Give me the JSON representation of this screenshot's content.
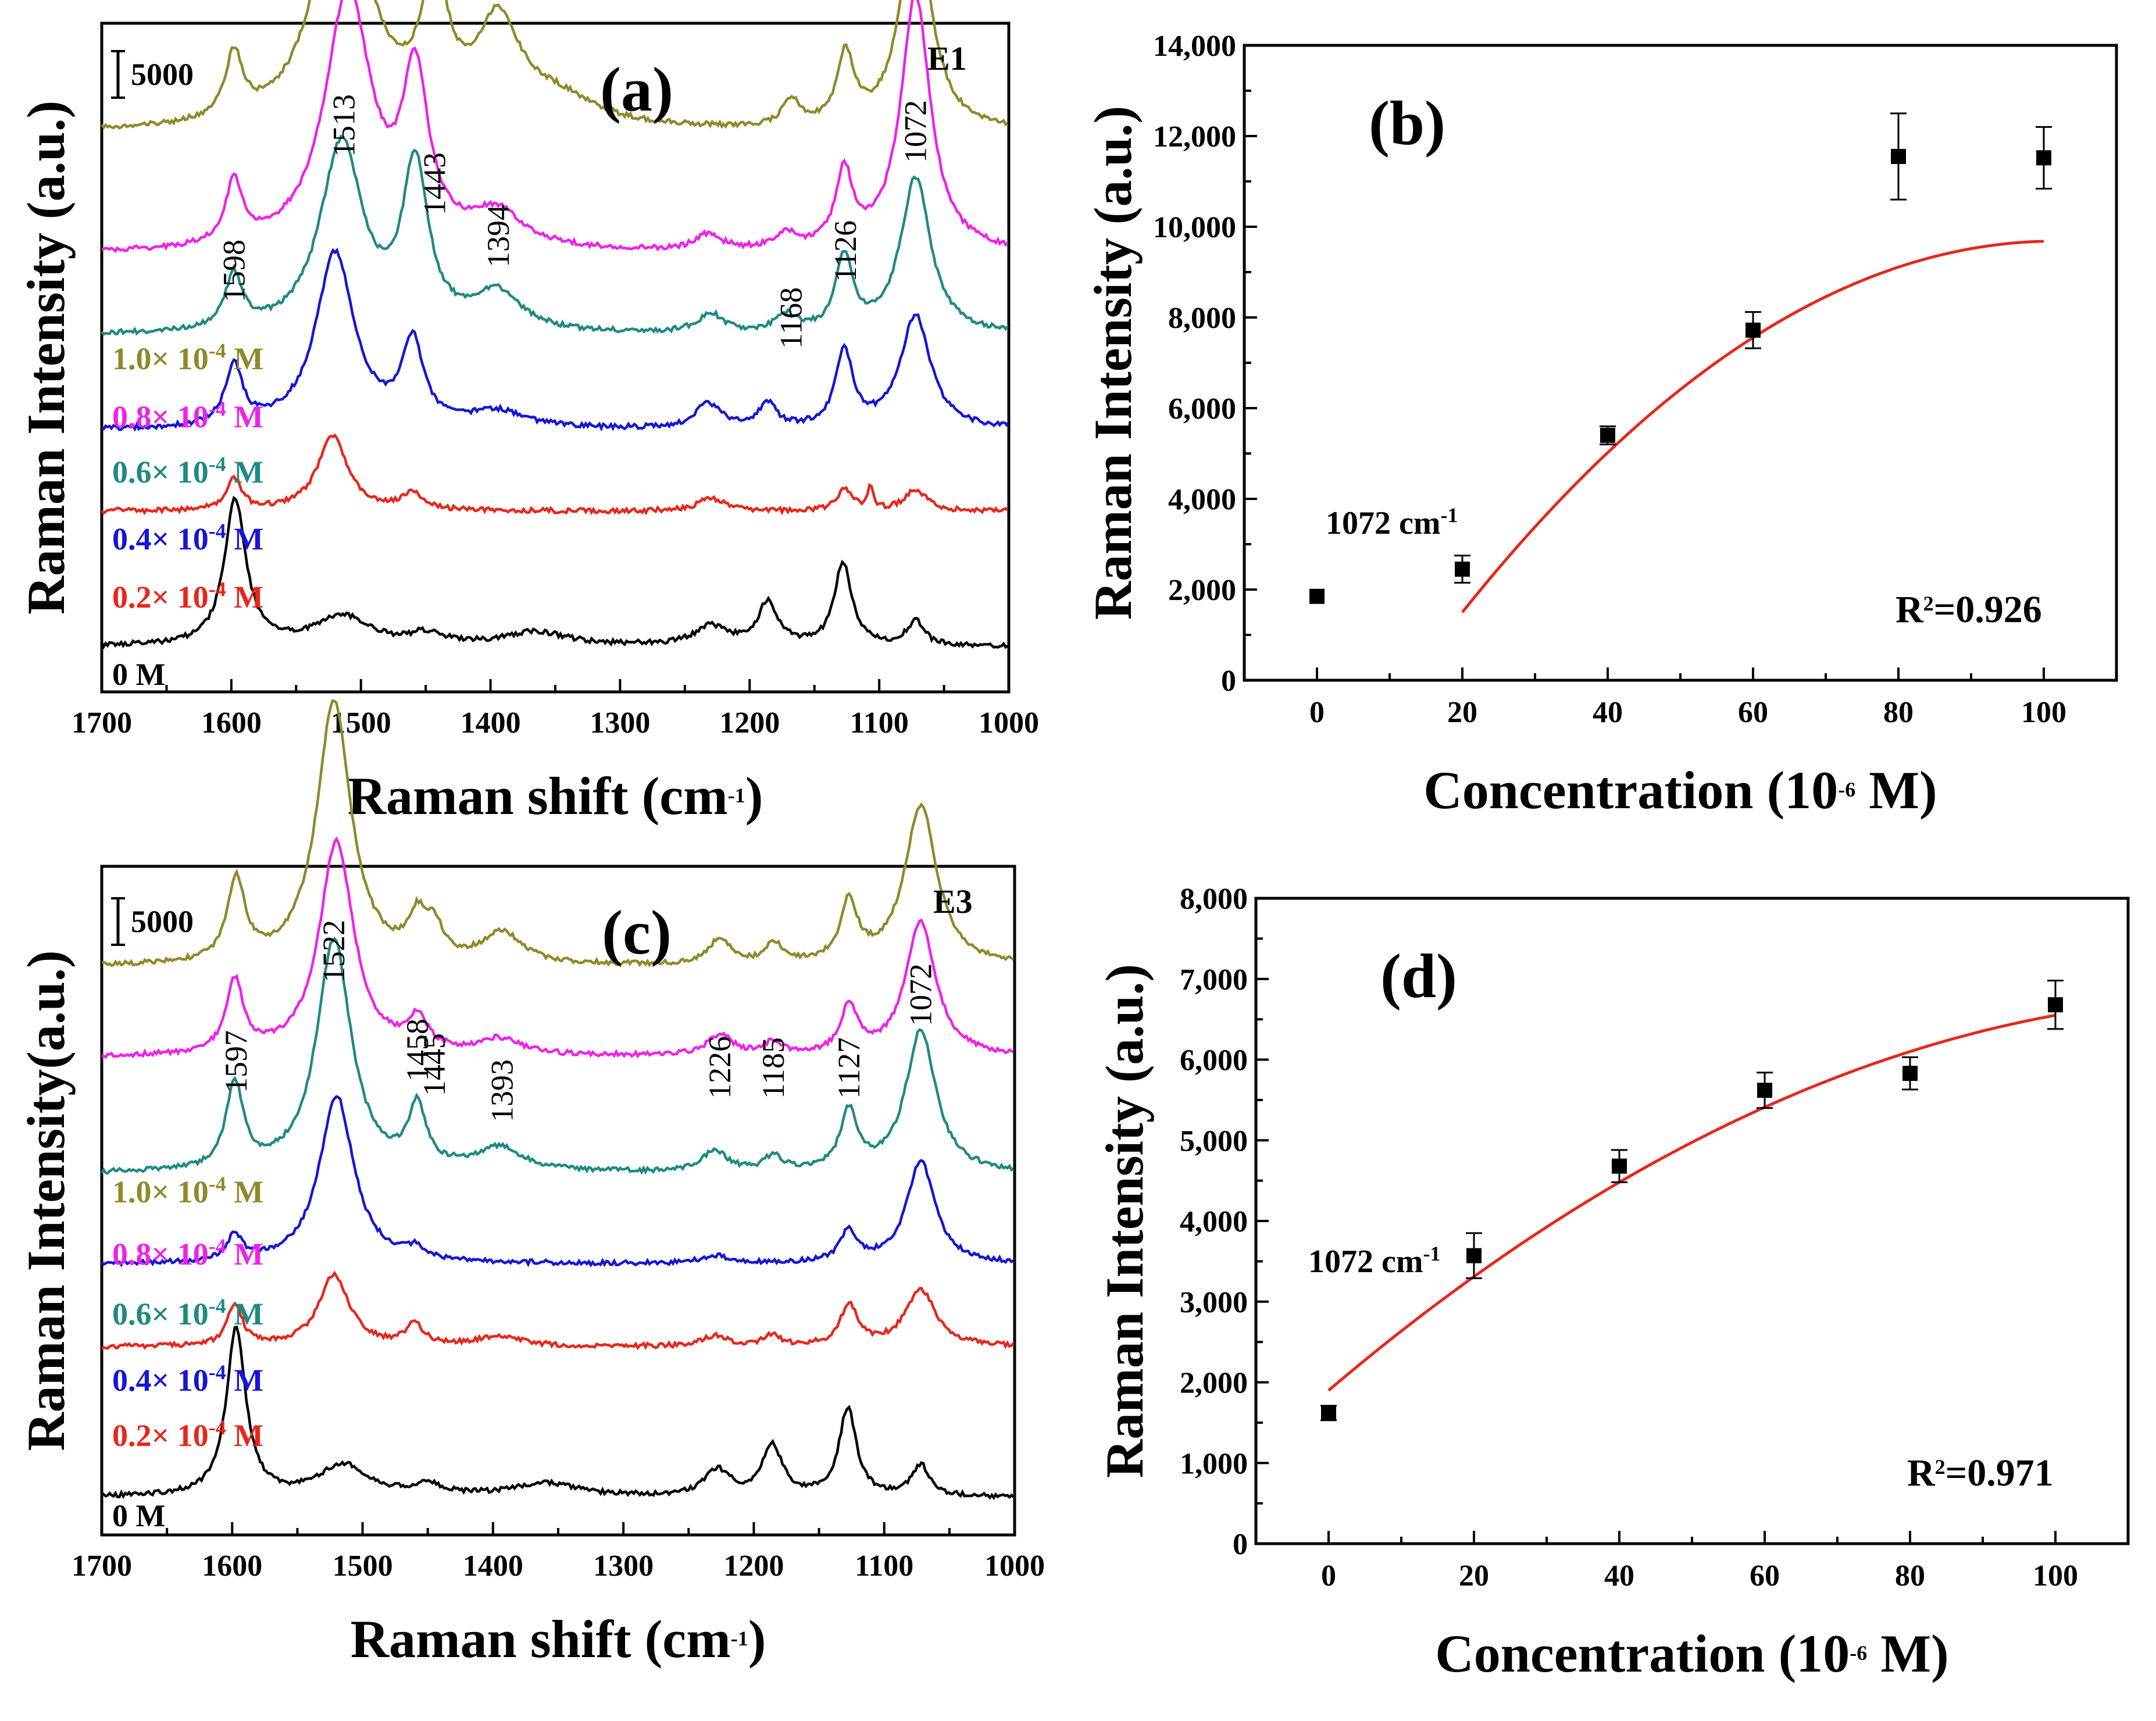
{
  "chart_data": [
    {
      "panel": "(a)",
      "type": "line",
      "sample": "E1",
      "xlabel": "Raman shift (cm-1)",
      "ylabel": "Raman Intensity (a.u.)",
      "xlim": [
        1700,
        1000
      ],
      "xticks": [
        1700,
        1600,
        1500,
        1400,
        1300,
        1200,
        1100,
        1000
      ],
      "scale_bar": "5000",
      "peak_labels": [
        {
          "x": 1598,
          "text": "1598"
        },
        {
          "x": 1513,
          "text": "1513"
        },
        {
          "x": 1443,
          "text": "1443"
        },
        {
          "x": 1394,
          "text": "1394"
        },
        {
          "x": 1168,
          "text": "1168"
        },
        {
          "x": 1126,
          "text": "1126"
        },
        {
          "x": 1072,
          "text": "1072"
        }
      ],
      "series": [
        {
          "name": "0 M",
          "label_main": "0 M",
          "label_exp": "",
          "label_tail": "",
          "color": "#000000",
          "offset": 0,
          "peaks": [
            [
              1597,
              5.4,
              10
            ],
            [
              1515,
              1.1,
              25
            ],
            [
              1450,
              0.4,
              15
            ],
            [
              1365,
              0.5,
              30
            ],
            [
              1230,
              0.7,
              15
            ],
            [
              1186,
              1.6,
              9
            ],
            [
              1128,
              3.1,
              8
            ],
            [
              1072,
              0.9,
              8
            ]
          ]
        },
        {
          "name": "0.2× 10^-4 M",
          "label_main": "0.2× 10",
          "label_exp": "-4",
          "label_tail": " M",
          "color": "#e8261b",
          "offset": 5.0,
          "peaks": [
            [
              1598,
              1.2,
              7
            ],
            [
              1522,
              2.8,
              14
            ],
            [
              1460,
              0.6,
              10
            ],
            [
              1230,
              0.5,
              12
            ],
            [
              1127,
              0.8,
              7
            ],
            [
              1107,
              0.8,
              3
            ],
            [
              1072,
              0.8,
              10
            ]
          ]
        },
        {
          "name": "0.4× 10^-4 M",
          "label_main": "0.4× 10",
          "label_exp": "-4",
          "label_tail": " M",
          "color": "#1515d8",
          "offset": 8.0,
          "peaks": [
            [
              1598,
              2.2,
              8
            ],
            [
              1520,
              6.5,
              18
            ],
            [
              1460,
              3.0,
              10
            ],
            [
              1395,
              0.6,
              25
            ],
            [
              1232,
              0.9,
              12
            ],
            [
              1186,
              0.9,
              8
            ],
            [
              1127,
              2.8,
              8
            ],
            [
              1072,
              4.2,
              14
            ]
          ]
        },
        {
          "name": "0.6× 10^-4 M",
          "label_main": "0.6× 10",
          "label_exp": "-4",
          "label_tail": " M",
          "color": "#1f8a82",
          "offset": 11.5,
          "peaks": [
            [
              1598,
              2.0,
              8
            ],
            [
              1515,
              7.0,
              20
            ],
            [
              1458,
              6.0,
              12
            ],
            [
              1395,
              1.4,
              22
            ],
            [
              1230,
              0.7,
              12
            ],
            [
              1172,
              0.6,
              10
            ],
            [
              1127,
              2.7,
              8
            ],
            [
              1072,
              5.8,
              14
            ]
          ]
        },
        {
          "name": "0.8× 10^-4 M",
          "label_main": "0.8× 10",
          "label_exp": "-4",
          "label_tail": " M",
          "color": "#ee22e8",
          "offset": 14.5,
          "peaks": [
            [
              1598,
              2.3,
              8
            ],
            [
              1510,
              9.5,
              22
            ],
            [
              1458,
              6.0,
              12
            ],
            [
              1395,
              1.3,
              25
            ],
            [
              1232,
              0.6,
              12
            ],
            [
              1172,
              0.6,
              10
            ],
            [
              1127,
              2.8,
              8
            ],
            [
              1072,
              9.5,
              14
            ]
          ]
        },
        {
          "name": "1.0× 10^-4 M",
          "label_main": "1.0× 10",
          "label_exp": "-4",
          "label_tail": " M",
          "color": "#8e8a2a",
          "offset": 19.0,
          "peaks": [
            [
              1598,
              2.4,
              8
            ],
            [
              1515,
              9.5,
              24
            ],
            [
              1443,
              5.0,
              12
            ],
            [
              1394,
              3.6,
              20
            ],
            [
              1350,
              1.0,
              40
            ],
            [
              1168,
              1.0,
              8
            ],
            [
              1126,
              2.6,
              8
            ],
            [
              1072,
              8.0,
              14
            ]
          ]
        }
      ]
    },
    {
      "panel": "(b)",
      "type": "scatter",
      "xlabel": "Concentration (10-6 M)",
      "ylabel": "Raman Intensity (a.u.)",
      "xlim": [
        -10,
        110
      ],
      "ylim": [
        0,
        14000
      ],
      "xticks": [
        0,
        20,
        40,
        60,
        80,
        100
      ],
      "yticks": [
        "0",
        "2,000",
        "4,000",
        "6,000",
        "8,000",
        "10,000",
        "12,000",
        "14,000"
      ],
      "annotation": "1072 cm-1",
      "r_squared": "R2=0.926",
      "points": [
        {
          "x": 0,
          "y": 1850,
          "err": 0
        },
        {
          "x": 20,
          "y": 2450,
          "err": 300
        },
        {
          "x": 40,
          "y": 5400,
          "err": 200
        },
        {
          "x": 60,
          "y": 7720,
          "err": 400
        },
        {
          "x": 80,
          "y": 11550,
          "err": 950
        },
        {
          "x": 100,
          "y": 11520,
          "err": 680
        }
      ],
      "fit": {
        "color": "#e8261b",
        "x_range": [
          20,
          100
        ],
        "a": -1.23,
        "b": 249.85,
        "c": -3006
      }
    },
    {
      "panel": "(c)",
      "type": "line",
      "sample": "E3",
      "xlabel": "Raman shift (cm-1)",
      "ylabel": "Raman Intensity(a.u.)",
      "xlim": [
        1700,
        1000
      ],
      "xticks": [
        1700,
        1600,
        1500,
        1400,
        1300,
        1200,
        1100,
        1000
      ],
      "scale_bar": "5000",
      "peak_labels": [
        {
          "x": 1597,
          "text": "1597"
        },
        {
          "x": 1522,
          "text": "1522"
        },
        {
          "x": 1458,
          "text": "1458"
        },
        {
          "x": 1445,
          "text": "1445"
        },
        {
          "x": 1393,
          "text": "1393"
        },
        {
          "x": 1226,
          "text": "1226"
        },
        {
          "x": 1185,
          "text": "1185"
        },
        {
          "x": 1127,
          "text": "1127"
        },
        {
          "x": 1072,
          "text": "1072"
        }
      ],
      "series": [
        {
          "name": "0 M",
          "label_main": "0 M",
          "label_exp": "",
          "label_tail": "",
          "color": "#000000",
          "offset": 0,
          "peaks": [
            [
              1597,
              6.5,
              9
            ],
            [
              1515,
              1.2,
              22
            ],
            [
              1450,
              0.4,
              15
            ],
            [
              1360,
              0.5,
              30
            ],
            [
              1228,
              1.0,
              12
            ],
            [
              1186,
              2.0,
              9
            ],
            [
              1128,
              3.4,
              8
            ],
            [
              1072,
              1.2,
              8
            ]
          ]
        },
        {
          "name": "0.2× 10^-4 M",
          "label_main": "0.2× 10",
          "label_exp": "-4",
          "label_tail": " M",
          "color": "#e8261b",
          "offset": 5.8,
          "peaks": [
            [
              1598,
              1.6,
              7
            ],
            [
              1522,
              2.8,
              14
            ],
            [
              1460,
              0.8,
              8
            ],
            [
              1395,
              0.4,
              20
            ],
            [
              1230,
              0.4,
              12
            ],
            [
              1186,
              0.4,
              8
            ],
            [
              1127,
              1.6,
              8
            ],
            [
              1072,
              2.2,
              14
            ]
          ]
        },
        {
          "name": "0.4× 10^-4 M",
          "label_main": "0.4× 10",
          "label_exp": "-4",
          "label_tail": " M",
          "color": "#1515d8",
          "offset": 9.0,
          "peaks": [
            [
              1598,
              1.0,
              7
            ],
            [
              1520,
              6.5,
              16
            ],
            [
              1460,
              0.4,
              8
            ],
            [
              1230,
              0.3,
              12
            ],
            [
              1127,
              1.2,
              8
            ],
            [
              1072,
              4.0,
              13
            ]
          ]
        },
        {
          "name": "0.6× 10^-4 M",
          "label_main": "0.6× 10",
          "label_exp": "-4",
          "label_tail": " M",
          "color": "#1f8a82",
          "offset": 12.5,
          "peaks": [
            [
              1598,
              3.3,
              8
            ],
            [
              1522,
              9.0,
              16
            ],
            [
              1458,
              2.3,
              8
            ],
            [
              1395,
              0.9,
              22
            ],
            [
              1230,
              0.8,
              12
            ],
            [
              1185,
              0.6,
              8
            ],
            [
              1127,
              2.3,
              8
            ],
            [
              1072,
              5.5,
              14
            ]
          ]
        },
        {
          "name": "0.8× 10^-4 M",
          "label_main": "0.8× 10",
          "label_exp": "-4",
          "label_tail": " M",
          "color": "#ee22e8",
          "offset": 17.0,
          "peaks": [
            [
              1598,
              2.8,
              8
            ],
            [
              1520,
              8.3,
              16
            ],
            [
              1458,
              1.2,
              10
            ],
            [
              1395,
              0.6,
              20
            ],
            [
              1226,
              0.8,
              12
            ],
            [
              1185,
              0.5,
              8
            ],
            [
              1127,
              1.8,
              8
            ],
            [
              1072,
              5.2,
              14
            ]
          ]
        },
        {
          "name": "1.0× 10^-4 M",
          "label_main": "1.0× 10",
          "label_exp": "-4",
          "label_tail": " M",
          "color": "#8e8a2a",
          "offset": 20.5,
          "peaks": [
            [
              1597,
              3.2,
              8
            ],
            [
              1522,
              10.2,
              16
            ],
            [
              1458,
              1.5,
              8
            ],
            [
              1445,
              1.2,
              8
            ],
            [
              1393,
              1.2,
              18
            ],
            [
              1226,
              1.0,
              10
            ],
            [
              1185,
              0.8,
              8
            ],
            [
              1127,
              2.3,
              8
            ],
            [
              1072,
              6.2,
              15
            ]
          ]
        }
      ]
    },
    {
      "panel": "(d)",
      "type": "scatter",
      "xlabel": "Concentration (10-6 M)",
      "ylabel": "Raman Intensity (a.u.)",
      "xlim": [
        -10,
        110
      ],
      "ylim": [
        0,
        8000
      ],
      "xticks": [
        0,
        20,
        40,
        60,
        80,
        100
      ],
      "yticks": [
        "0",
        "1,000",
        "2,000",
        "3,000",
        "4,000",
        "5,000",
        "6,000",
        "7,000",
        "8,000"
      ],
      "annotation": "1072 cm-1",
      "r_squared": "R2=0.971",
      "points": [
        {
          "x": 0,
          "y": 1620,
          "err": 90
        },
        {
          "x": 20,
          "y": 3570,
          "err": 280
        },
        {
          "x": 40,
          "y": 4680,
          "err": 200
        },
        {
          "x": 60,
          "y": 5620,
          "err": 220
        },
        {
          "x": 80,
          "y": 5830,
          "err": 200
        },
        {
          "x": 100,
          "y": 6680,
          "err": 300
        }
      ],
      "fit": {
        "color": "#e8261b",
        "x_range": [
          0,
          100
        ],
        "a": -0.3,
        "b": 76.5,
        "c": 1900
      }
    }
  ]
}
